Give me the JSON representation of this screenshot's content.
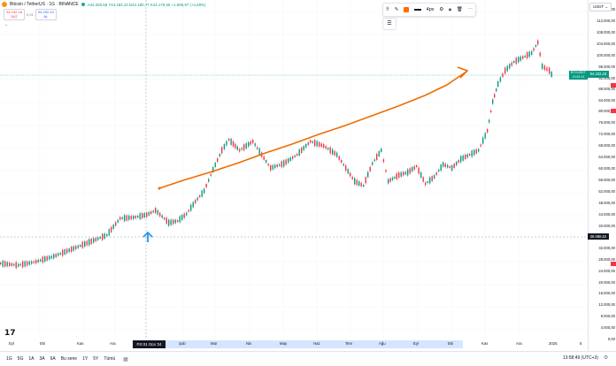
{
  "header": {
    "symbol_title": "Bitcoin / TetherUS · 1G · BINANCE",
    "ohlc": "A42.283,58 Y44.184,10 D42.180,77 K44.179,55 +1.895,97 (+4,48%)",
    "sell_price": "94.232,18",
    "sell_label": "SAT",
    "spread": "0,01",
    "buy_price": "94.232,19",
    "buy_label": "AL"
  },
  "drawing_toolbar": {
    "label_4px": "4px",
    "icons": [
      "template-icon",
      "pencil-icon",
      "line-width-icon",
      "settings-icon",
      "lock-icon",
      "trash-icon",
      "more-icon"
    ]
  },
  "price_axis": {
    "currency": "USDT",
    "ticks": [
      "116.000,00",
      "112.000,00",
      "108.000,00",
      "104.000,00",
      "100.000,00",
      "96.000,00",
      "92.000,00",
      "88.000,00",
      "84.000,00",
      "80.000,00",
      "76.000,00",
      "72.000,00",
      "68.000,00",
      "64.000,00",
      "60.000,00",
      "56.000,00",
      "52.000,00",
      "48.000,00",
      "44.000,00",
      "40.000,00",
      "32.000,00",
      "28.000,00",
      "24.000,00",
      "20.000,00",
      "16.000,00",
      "12.000,00",
      "8.000,00",
      "4.000,00",
      "0,00"
    ],
    "last_price_label": "BTCUSDT",
    "last_price": "94.232,18",
    "last_price_sub": "10:01:11",
    "crosshair_price": "36.088,52"
  },
  "time_axis": {
    "ticks": [
      "Eyl",
      "Eki",
      "Kas",
      "Ara",
      "Şub",
      "Mar",
      "Nis",
      "May",
      "Haz",
      "Tem",
      "Ağu",
      "Eyl",
      "Eki",
      "Kas",
      "Ara",
      "2025",
      "5"
    ],
    "crosshair_label": "Pzt 01 Oca '24"
  },
  "bottom_bar": {
    "timeframes": [
      "1G",
      "5G",
      "1A",
      "3A",
      "6A",
      "Bu sene",
      "1Y",
      "5Y",
      "Tümü"
    ],
    "clock": "13:58:49 (UTC+3)"
  },
  "colors": {
    "up": "#089981",
    "down": "#f23645",
    "trend_line": "#ef6c00",
    "arrow": "#2196f3"
  }
}
